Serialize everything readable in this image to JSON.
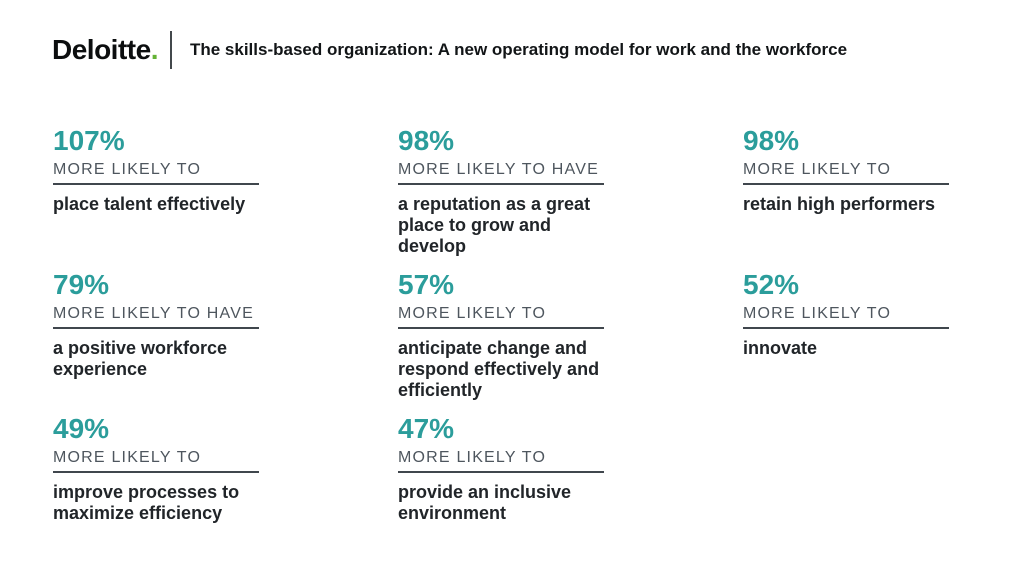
{
  "header": {
    "logo_text": "Deloitte",
    "logo_dot": ".",
    "title": "The skills-based organization: A new operating model for work and the workforce"
  },
  "colors": {
    "accent_teal": "#2b9d9b",
    "logo_green": "#64b235",
    "label_gray": "#4e565e",
    "body_dark": "#212529",
    "rule_dark": "#40474d",
    "background": "#ffffff"
  },
  "stats": [
    {
      "value": "107%",
      "label": "MORE LIKELY TO",
      "description": "place talent effectively"
    },
    {
      "value": "98%",
      "label": "MORE LIKELY TO HAVE",
      "description": "a reputation as a great place to grow and develop"
    },
    {
      "value": "98%",
      "label": "MORE LIKELY TO",
      "description": "retain high performers"
    },
    {
      "value": "79%",
      "label": "MORE LIKELY TO HAVE",
      "description": "a positive workforce experience"
    },
    {
      "value": "57%",
      "label": "MORE LIKELY TO",
      "description": "anticipate change and respond effectively and efficiently"
    },
    {
      "value": "52%",
      "label": "MORE LIKELY TO",
      "description": "innovate"
    },
    {
      "value": "49%",
      "label": "MORE LIKELY TO",
      "description": "improve processes to maximize efficiency"
    },
    {
      "value": "47%",
      "label": "MORE LIKELY TO",
      "description": "provide an inclusive environment"
    }
  ]
}
